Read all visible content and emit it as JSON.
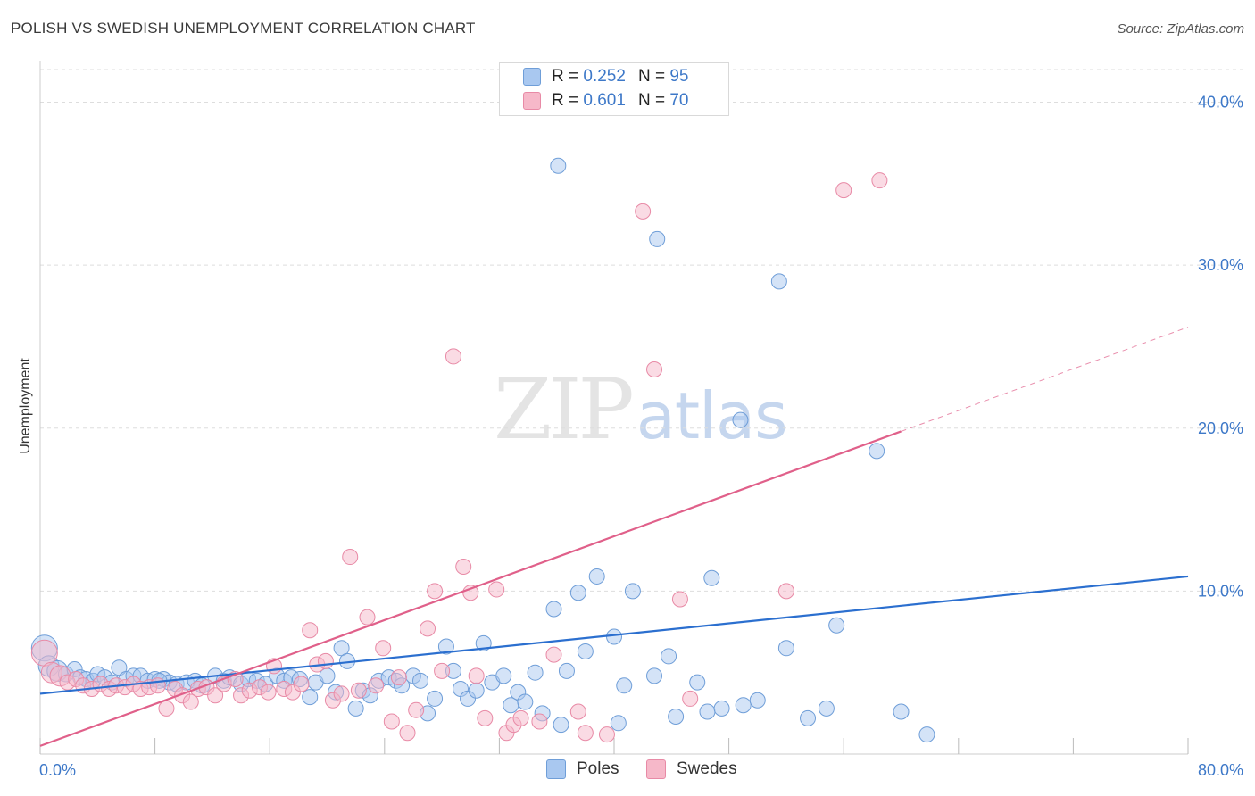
{
  "title": "POLISH VS SWEDISH UNEMPLOYMENT CORRELATION CHART",
  "source": "Source: ZipAtlas.com",
  "watermark": {
    "zip": "ZIP",
    "atlas": "atlas"
  },
  "legend": {
    "rows": [
      {
        "r_label": "R =",
        "r_value": "0.252",
        "n_label": "N =",
        "n_value": "95"
      },
      {
        "r_label": "R =",
        "r_value": "0.601",
        "n_label": "N =",
        "n_value": "70"
      }
    ]
  },
  "bottom_legend": [
    "Poles",
    "Swedes"
  ],
  "colors": {
    "poles_fill": "#a9c8f0",
    "poles_stroke": "#6f9ed8",
    "poles_line": "#2b6fcf",
    "swedes_fill": "#f6b8c9",
    "swedes_stroke": "#e88aa6",
    "swedes_line": "#e0608a",
    "tick": "#3d78c8",
    "grid": "#dddddd"
  },
  "chart_data": {
    "type": "scatter",
    "title": "POLISH VS SWEDISH UNEMPLOYMENT CORRELATION CHART",
    "xlabel": "",
    "ylabel": "Unemployment",
    "xlim": [
      0,
      80
    ],
    "ylim": [
      0,
      42
    ],
    "x_tick_labels": [
      "0.0%",
      "80.0%"
    ],
    "y_ticks": [
      10,
      20,
      30,
      40
    ],
    "y_tick_labels": [
      "10.0%",
      "20.0%",
      "30.0%",
      "40.0%"
    ],
    "grid": true,
    "legend_position": "top-center",
    "series": [
      {
        "name": "Poles",
        "r": 0.252,
        "n": 95,
        "trend": {
          "x0": 0,
          "y0": 3.7,
          "x1": 80,
          "y1": 10.9
        },
        "points": [
          [
            0.3,
            6.5
          ],
          [
            0.6,
            5.4
          ],
          [
            1.2,
            5.1
          ],
          [
            1.8,
            4.9
          ],
          [
            2.4,
            5.2
          ],
          [
            2.8,
            4.7
          ],
          [
            3.2,
            4.6
          ],
          [
            3.7,
            4.5
          ],
          [
            4.0,
            4.9
          ],
          [
            4.5,
            4.7
          ],
          [
            5.0,
            4.4
          ],
          [
            5.5,
            5.3
          ],
          [
            6.0,
            4.6
          ],
          [
            6.5,
            4.8
          ],
          [
            7.0,
            4.8
          ],
          [
            7.5,
            4.5
          ],
          [
            8.0,
            4.6
          ],
          [
            8.6,
            4.6
          ],
          [
            9.0,
            4.4
          ],
          [
            9.5,
            4.3
          ],
          [
            10.2,
            4.4
          ],
          [
            10.8,
            4.5
          ],
          [
            11.3,
            4.2
          ],
          [
            12.2,
            4.8
          ],
          [
            12.8,
            4.5
          ],
          [
            13.2,
            4.7
          ],
          [
            14.0,
            4.3
          ],
          [
            14.5,
            4.6
          ],
          [
            15.1,
            4.5
          ],
          [
            15.7,
            4.3
          ],
          [
            16.5,
            4.8
          ],
          [
            17.0,
            4.5
          ],
          [
            17.5,
            4.7
          ],
          [
            18.1,
            4.6
          ],
          [
            18.8,
            3.5
          ],
          [
            19.2,
            4.4
          ],
          [
            20.0,
            4.8
          ],
          [
            20.6,
            3.8
          ],
          [
            21.0,
            6.5
          ],
          [
            21.4,
            5.7
          ],
          [
            22.0,
            2.8
          ],
          [
            22.5,
            3.9
          ],
          [
            23.0,
            3.6
          ],
          [
            23.6,
            4.5
          ],
          [
            24.3,
            4.7
          ],
          [
            24.8,
            4.5
          ],
          [
            25.2,
            4.2
          ],
          [
            26.0,
            4.8
          ],
          [
            26.5,
            4.5
          ],
          [
            27.0,
            2.5
          ],
          [
            27.5,
            3.4
          ],
          [
            28.3,
            6.6
          ],
          [
            28.8,
            5.1
          ],
          [
            29.3,
            4.0
          ],
          [
            29.8,
            3.4
          ],
          [
            30.4,
            3.9
          ],
          [
            30.9,
            6.8
          ],
          [
            31.5,
            4.4
          ],
          [
            32.3,
            4.8
          ],
          [
            32.8,
            3.0
          ],
          [
            33.3,
            3.8
          ],
          [
            33.8,
            3.2
          ],
          [
            34.5,
            5.0
          ],
          [
            35.0,
            2.5
          ],
          [
            35.8,
            8.9
          ],
          [
            36.3,
            1.8
          ],
          [
            36.7,
            5.1
          ],
          [
            37.5,
            9.9
          ],
          [
            38.0,
            6.3
          ],
          [
            38.8,
            10.9
          ],
          [
            40.0,
            7.2
          ],
          [
            40.3,
            1.9
          ],
          [
            40.7,
            4.2
          ],
          [
            41.3,
            10.0
          ],
          [
            43.0,
            31.6
          ],
          [
            42.8,
            4.8
          ],
          [
            43.8,
            6.0
          ],
          [
            44.3,
            2.3
          ],
          [
            45.8,
            4.4
          ],
          [
            46.5,
            2.6
          ],
          [
            46.8,
            10.8
          ],
          [
            47.5,
            2.8
          ],
          [
            48.8,
            20.5
          ],
          [
            49.0,
            3.0
          ],
          [
            50.0,
            3.3
          ],
          [
            51.5,
            29.0
          ],
          [
            52.0,
            6.5
          ],
          [
            53.5,
            2.2
          ],
          [
            54.8,
            2.8
          ],
          [
            55.5,
            7.9
          ],
          [
            58.3,
            18.6
          ],
          [
            36.1,
            36.1
          ],
          [
            60.0,
            2.6
          ],
          [
            61.8,
            1.2
          ],
          [
            8.3,
            4.5
          ]
        ]
      },
      {
        "name": "Swedes",
        "r": 0.601,
        "n": 70,
        "trend": {
          "x0": 0,
          "y0": 0.5,
          "x1": 60,
          "y1": 19.8
        },
        "trend_dashed_to": {
          "x1": 80,
          "y1": 26.2
        },
        "points": [
          [
            0.3,
            6.2
          ],
          [
            0.8,
            5.0
          ],
          [
            1.4,
            4.8
          ],
          [
            1.9,
            4.4
          ],
          [
            2.5,
            4.6
          ],
          [
            3.0,
            4.2
          ],
          [
            3.6,
            4.0
          ],
          [
            4.2,
            4.3
          ],
          [
            4.8,
            4.0
          ],
          [
            5.3,
            4.2
          ],
          [
            5.9,
            4.1
          ],
          [
            6.5,
            4.3
          ],
          [
            7.0,
            4.0
          ],
          [
            7.6,
            4.1
          ],
          [
            8.2,
            4.2
          ],
          [
            8.8,
            2.8
          ],
          [
            9.4,
            4.0
          ],
          [
            9.9,
            3.6
          ],
          [
            10.5,
            3.2
          ],
          [
            11.0,
            4.0
          ],
          [
            11.6,
            4.1
          ],
          [
            12.2,
            3.6
          ],
          [
            12.8,
            4.3
          ],
          [
            13.6,
            4.6
          ],
          [
            14.0,
            3.6
          ],
          [
            14.6,
            3.9
          ],
          [
            15.3,
            4.1
          ],
          [
            15.9,
            3.8
          ],
          [
            16.3,
            5.4
          ],
          [
            17.0,
            4.0
          ],
          [
            17.6,
            3.8
          ],
          [
            18.2,
            4.3
          ],
          [
            18.8,
            7.6
          ],
          [
            19.3,
            5.5
          ],
          [
            19.9,
            5.7
          ],
          [
            20.4,
            3.3
          ],
          [
            21.0,
            3.7
          ],
          [
            21.6,
            12.1
          ],
          [
            22.2,
            3.9
          ],
          [
            22.8,
            8.4
          ],
          [
            23.4,
            4.2
          ],
          [
            23.9,
            6.5
          ],
          [
            24.5,
            2.0
          ],
          [
            25.0,
            4.7
          ],
          [
            25.6,
            1.3
          ],
          [
            26.2,
            2.7
          ],
          [
            27.0,
            7.7
          ],
          [
            27.5,
            10.0
          ],
          [
            28.0,
            5.1
          ],
          [
            28.8,
            24.4
          ],
          [
            29.5,
            11.5
          ],
          [
            30.0,
            9.9
          ],
          [
            30.4,
            4.8
          ],
          [
            31.8,
            10.1
          ],
          [
            32.5,
            1.3
          ],
          [
            33.0,
            1.8
          ],
          [
            33.5,
            2.2
          ],
          [
            34.8,
            2.0
          ],
          [
            35.8,
            6.1
          ],
          [
            37.5,
            2.6
          ],
          [
            38.0,
            1.3
          ],
          [
            42.0,
            33.3
          ],
          [
            42.8,
            23.6
          ],
          [
            44.6,
            9.5
          ],
          [
            45.3,
            3.4
          ],
          [
            52.0,
            10.0
          ],
          [
            56.0,
            34.6
          ],
          [
            58.5,
            35.2
          ],
          [
            31.0,
            2.2
          ],
          [
            39.5,
            1.2
          ]
        ]
      }
    ]
  }
}
